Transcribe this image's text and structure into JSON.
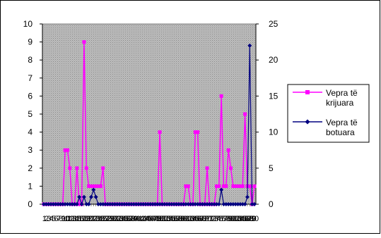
{
  "chart_data": {
    "type": "line",
    "x": [
      1,
      2,
      3,
      4,
      5,
      6,
      7,
      8,
      9,
      10,
      11,
      12,
      13,
      14,
      15,
      16,
      17,
      18,
      19,
      20,
      21,
      22,
      23,
      24,
      25,
      26,
      27,
      28,
      29,
      30,
      31,
      32,
      33,
      34,
      35,
      36,
      37,
      38,
      39,
      40,
      41,
      42,
      43,
      44,
      45,
      46,
      47,
      48,
      49,
      50,
      51,
      52,
      53,
      54,
      55,
      56,
      57,
      58,
      59,
      60,
      61,
      62,
      63,
      64,
      65,
      66,
      67,
      68,
      69,
      70,
      71,
      72,
      73,
      74,
      75,
      76,
      77,
      78,
      79,
      80,
      81,
      82,
      83,
      84,
      85,
      86,
      87,
      88,
      89,
      90
    ],
    "x_tick_labels": [
      "1",
      "2",
      "3",
      "4",
      "5",
      "6",
      "7",
      "8",
      "9",
      "10",
      "11",
      "12",
      "13",
      "14",
      "15",
      "16",
      "17",
      "18",
      "19",
      "20",
      "21",
      "22",
      "23",
      "24",
      "25",
      "26",
      "27",
      "28",
      "29",
      "30",
      "31",
      "32",
      "33",
      "34",
      "35",
      "36",
      "37",
      "38",
      "39",
      "40",
      "41",
      "42",
      "43",
      "44",
      "45",
      "46",
      "47",
      "48",
      "49",
      "50",
      "51",
      "52",
      "53",
      "54",
      "55",
      "56",
      "57",
      "58",
      "59",
      "60",
      "61",
      "62",
      "63",
      "64",
      "65",
      "66",
      "67",
      "68",
      "69",
      "70",
      "71",
      "72",
      "73",
      "74",
      "75",
      "76",
      "77",
      "78",
      "79",
      "80",
      "81",
      "82",
      "83",
      "84",
      "85",
      "86",
      "87",
      "88",
      "89",
      "90"
    ],
    "y_left": {
      "min": 0,
      "max": 10,
      "ticks": [
        "0",
        "1",
        "2",
        "3",
        "4",
        "5",
        "6",
        "7",
        "8",
        "9",
        "10"
      ]
    },
    "y_right": {
      "min": 0,
      "max": 25,
      "ticks": [
        "0",
        "5",
        "10",
        "15",
        "20",
        "25"
      ]
    },
    "grid": false,
    "legend_position": "right",
    "series": [
      {
        "name": "Vepra të krijuara",
        "axis": "left",
        "color": "#ff00ff",
        "marker": "square",
        "values": [
          0,
          0,
          0,
          0,
          0,
          0,
          0,
          0,
          0,
          3,
          3,
          2,
          0,
          0,
          2,
          0,
          0,
          9,
          2,
          1,
          1,
          1,
          1,
          1,
          1,
          2,
          0,
          0,
          0,
          0,
          0,
          0,
          0,
          0,
          0,
          0,
          0,
          0,
          0,
          0,
          0,
          0,
          0,
          0,
          0,
          0,
          0,
          0,
          0,
          4,
          0,
          0,
          0,
          0,
          0,
          0,
          0,
          0,
          0,
          0,
          1,
          1,
          0,
          0,
          4,
          4,
          0,
          0,
          0,
          2,
          0,
          0,
          0,
          1,
          1,
          6,
          1,
          1,
          3,
          2,
          1,
          1,
          1,
          1,
          1,
          5,
          1,
          1,
          0,
          1
        ]
      },
      {
        "name": "Vepra të botuara",
        "axis": "right",
        "color": "#000080",
        "marker": "diamond",
        "values": [
          0,
          0,
          0,
          0,
          0,
          0,
          0,
          0,
          0,
          0,
          0,
          0,
          0,
          0,
          0,
          1,
          0,
          1,
          0,
          0,
          1,
          2,
          1,
          0,
          0,
          0,
          0,
          0,
          0,
          0,
          0,
          0,
          0,
          0,
          0,
          0,
          0,
          0,
          0,
          0,
          0,
          0,
          0,
          0,
          0,
          0,
          0,
          0,
          0,
          0,
          0,
          0,
          0,
          0,
          0,
          0,
          0,
          0,
          0,
          0,
          0,
          0,
          0,
          0,
          0,
          0,
          0,
          0,
          0,
          0,
          0,
          0,
          0,
          0,
          0,
          2,
          0,
          0,
          0,
          0,
          0,
          0,
          0,
          0,
          0,
          0,
          1,
          22,
          0,
          0
        ]
      }
    ],
    "legend_labels": [
      [
        "Vepra të",
        "krijuara"
      ],
      [
        "Vepra të",
        "botuara"
      ]
    ]
  }
}
